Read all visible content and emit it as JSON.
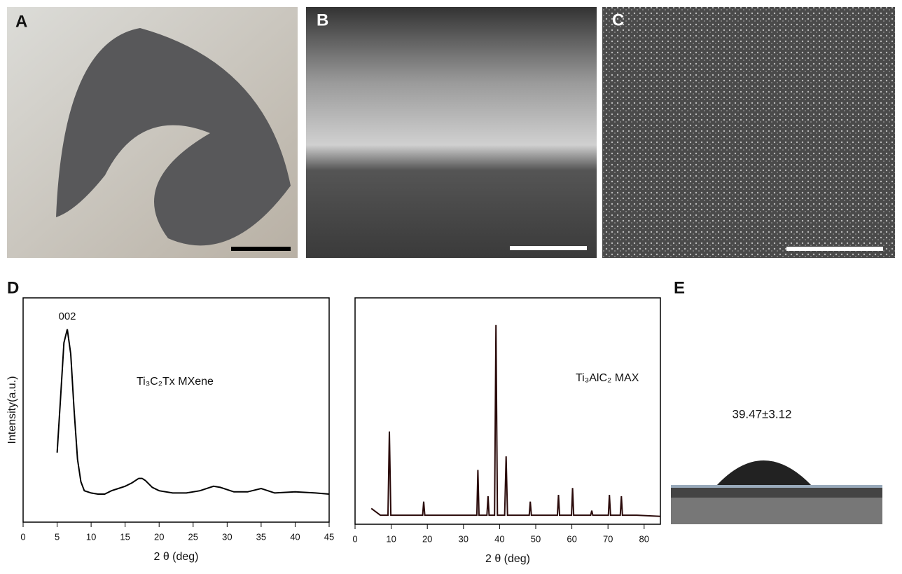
{
  "panel_labels": [
    "A",
    "B",
    "C",
    "D",
    "E"
  ],
  "contact_angle": "39.47±3.12",
  "chart_data": [
    {
      "type": "line",
      "color": "#000000",
      "xlabel": "2 θ  (deg)",
      "ylabel": "Intensity(a.u.)",
      "annotation": "002",
      "label": "Ti₃C₂Tx MXene",
      "xlim": [
        0,
        45
      ],
      "xticks": [
        0,
        5,
        10,
        15,
        20,
        25,
        30,
        35,
        40,
        45
      ],
      "ylim": [
        0,
        100
      ],
      "x": [
        5,
        5.5,
        6,
        6.5,
        7,
        7.5,
        8,
        8.5,
        9,
        10,
        11,
        12,
        13,
        14,
        15,
        16,
        17,
        17.5,
        18,
        19,
        20,
        22,
        24,
        26,
        28,
        29,
        31,
        33,
        35,
        37,
        40,
        43,
        45
      ],
      "values": [
        31,
        55,
        80,
        86,
        75,
        50,
        28,
        18,
        14,
        13,
        12.5,
        12.5,
        14,
        15,
        16,
        17.5,
        19.5,
        19.5,
        18.5,
        15.5,
        14,
        13,
        13,
        14,
        16,
        15.5,
        13.5,
        13.5,
        15,
        13,
        13.5,
        13,
        12.5
      ]
    },
    {
      "type": "line",
      "color": "#2a0a0a",
      "xlabel": "2 θ  (deg)",
      "label": "Ti₃AlC₂ MAX",
      "xlim": [
        0,
        84.5
      ],
      "xticks": [
        0,
        10,
        20,
        30,
        40,
        50,
        60,
        70,
        80
      ],
      "ylim": [
        0,
        100
      ],
      "x": [
        4.5,
        7,
        9.1,
        9.5,
        9.9,
        18.7,
        19,
        19.3,
        33.7,
        34,
        34.3,
        36.5,
        36.8,
        37.1,
        38.6,
        39,
        39.4,
        41.4,
        41.8,
        42.2,
        48.2,
        48.5,
        48.8,
        56,
        56.3,
        56.6,
        59.9,
        60.2,
        60.5,
        65.2,
        65.5,
        65.8,
        70.1,
        70.4,
        70.7,
        73.4,
        73.7,
        74,
        78,
        84.5
      ],
      "values": [
        7,
        4,
        4,
        41,
        4,
        4,
        10,
        4,
        4,
        24,
        4,
        4,
        12.4,
        4,
        4,
        88,
        4,
        4,
        30,
        4,
        4,
        10,
        4,
        4,
        13,
        4,
        4,
        16,
        4,
        4,
        6,
        4,
        4,
        13,
        4,
        4,
        12.4,
        4,
        4,
        3.5
      ]
    }
  ]
}
